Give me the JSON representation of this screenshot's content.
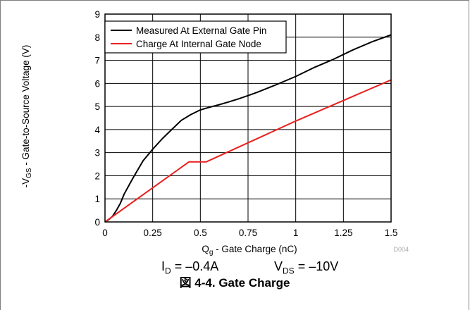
{
  "caption": "図 4-4. Gate Charge",
  "conditions": {
    "id_label": "I",
    "id_sub": "D",
    "id_value": " = –0.4A",
    "vds_label": "V",
    "vds_sub": "DS",
    "vds_value": " = –10V"
  },
  "figure_code": "D004",
  "chart_data": {
    "type": "line",
    "xlabel_main": "Q",
    "xlabel_sub": "g",
    "xlabel_rest": " - Gate Charge (nC)",
    "ylabel_main": "-V",
    "ylabel_sub": "GS",
    "ylabel_rest": " - Gate-to-Source Voltage (V)",
    "xlim": [
      0,
      1.5
    ],
    "ylim": [
      0,
      9
    ],
    "x_ticks": [
      0,
      0.25,
      0.5,
      0.75,
      1,
      1.25,
      1.5
    ],
    "x_tick_labels": [
      "0",
      "0.25",
      "0.5",
      "0.75",
      "1",
      "1.25",
      "1.5"
    ],
    "y_ticks": [
      0,
      1,
      2,
      3,
      4,
      5,
      6,
      7,
      8,
      9
    ],
    "y_tick_labels": [
      "0",
      "1",
      "2",
      "3",
      "4",
      "5",
      "6",
      "7",
      "8",
      "9"
    ],
    "grid": true,
    "legend_position": "top-left",
    "series": [
      {
        "name": "Measured At External Gate Pin",
        "color": "#000000",
        "points": [
          [
            0,
            0
          ],
          [
            0.02,
            0.1
          ],
          [
            0.04,
            0.25
          ],
          [
            0.06,
            0.5
          ],
          [
            0.08,
            0.8
          ],
          [
            0.1,
            1.2
          ],
          [
            0.13,
            1.65
          ],
          [
            0.15,
            1.95
          ],
          [
            0.2,
            2.65
          ],
          [
            0.25,
            3.15
          ],
          [
            0.3,
            3.6
          ],
          [
            0.35,
            4.0
          ],
          [
            0.4,
            4.4
          ],
          [
            0.45,
            4.65
          ],
          [
            0.5,
            4.85
          ],
          [
            0.55,
            4.97
          ],
          [
            0.6,
            5.08
          ],
          [
            0.65,
            5.2
          ],
          [
            0.7,
            5.33
          ],
          [
            0.75,
            5.47
          ],
          [
            0.8,
            5.62
          ],
          [
            0.9,
            5.95
          ],
          [
            1.0,
            6.3
          ],
          [
            1.1,
            6.7
          ],
          [
            1.2,
            7.05
          ],
          [
            1.3,
            7.45
          ],
          [
            1.4,
            7.8
          ],
          [
            1.5,
            8.1
          ]
        ]
      },
      {
        "name": "Charge At Internal Gate Node",
        "color": "#e8211f",
        "points": [
          [
            0,
            0
          ],
          [
            0.44,
            2.6
          ],
          [
            0.53,
            2.6
          ],
          [
            1.0,
            4.37
          ],
          [
            1.5,
            6.15
          ]
        ]
      }
    ]
  }
}
